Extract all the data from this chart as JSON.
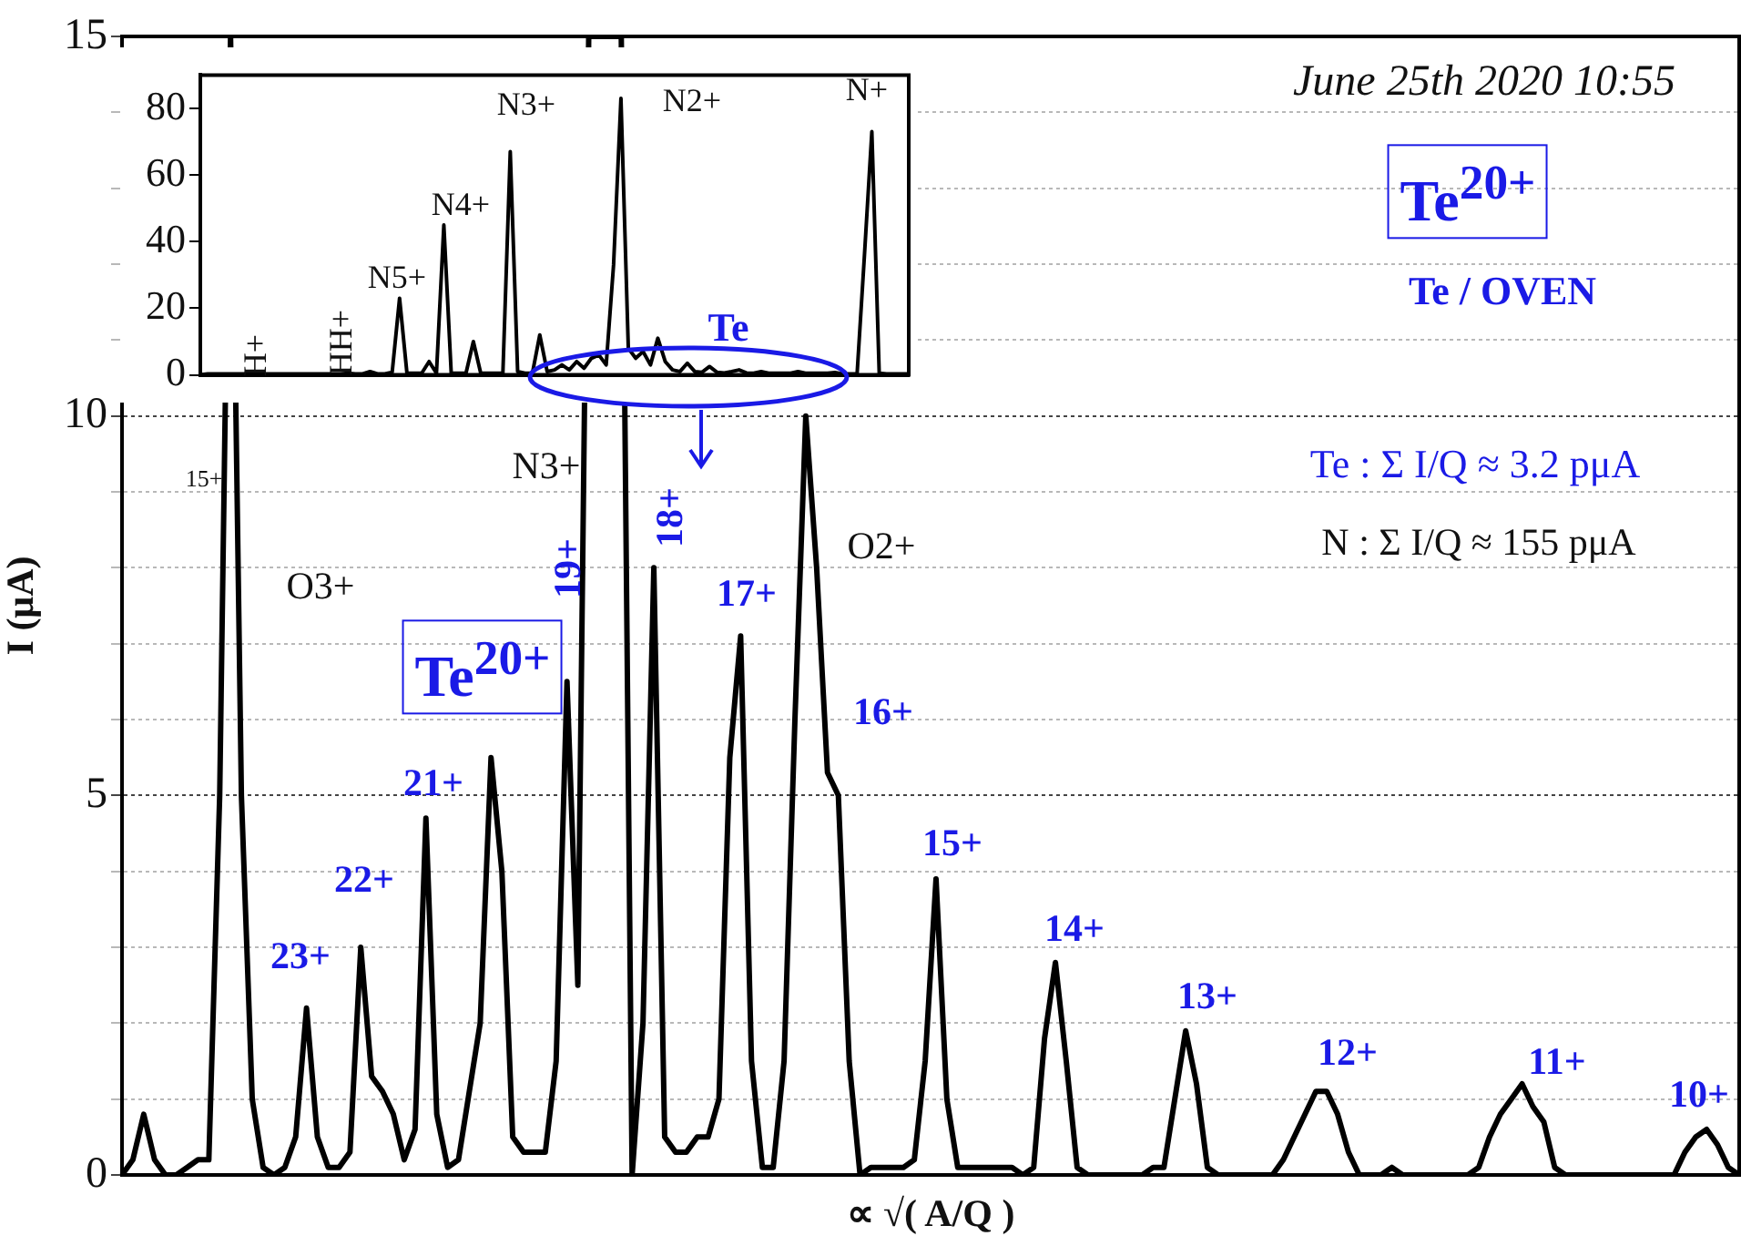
{
  "chart_data": [
    {
      "type": "line",
      "xlabel": "∝ √( A/Q )",
      "ylabel": "I (μA)",
      "tick_labels": "y",
      "grid": "y",
      "categories": [
        null,
        null,
        null,
        null,
        null,
        null,
        null,
        null,
        null,
        null,
        null,
        null,
        null,
        null,
        null,
        null,
        null,
        null,
        null,
        null,
        null,
        null,
        null,
        null,
        null,
        null,
        null,
        null,
        null,
        null,
        null,
        null,
        null,
        null,
        null,
        null,
        null,
        null,
        null,
        null,
        null,
        null,
        null,
        null,
        null,
        null,
        null,
        null,
        null,
        null,
        null,
        null,
        null,
        null,
        null,
        null,
        null,
        null,
        null,
        null,
        null,
        null,
        null,
        null,
        null,
        null,
        null,
        null,
        null,
        null,
        null,
        null,
        null,
        null,
        null,
        null,
        null,
        null,
        null,
        null,
        null,
        null,
        null,
        null,
        null,
        null,
        null,
        null,
        null,
        null,
        null,
        null,
        null,
        null,
        null,
        null,
        null,
        null,
        null,
        null,
        null,
        null,
        null,
        null,
        null,
        null,
        null,
        null,
        null,
        null,
        null,
        null,
        null,
        null,
        null,
        null,
        null,
        null,
        null,
        null,
        null,
        null,
        null,
        null,
        null,
        null,
        null,
        null,
        null,
        null,
        null,
        null,
        null,
        null,
        null,
        null,
        null,
        null,
        null,
        null,
        null,
        null,
        null,
        null,
        null,
        null,
        null,
        null,
        null,
        null
      ],
      "series": [
        {
          "color": "#000000",
          "values": [
            0,
            0.2,
            0.8,
            0.2,
            0,
            0,
            0.1,
            0.2,
            0.2,
            5,
            15,
            5,
            1,
            0.1,
            0,
            0.1,
            0.5,
            2.2,
            0.5,
            0.1,
            0.1,
            0.3,
            3,
            1.3,
            1.1,
            0.8,
            0.2,
            0.6,
            4.7,
            0.8,
            0.1,
            0.2,
            1.1,
            2,
            5.5,
            4,
            0.5,
            0.3,
            0.3,
            0.3,
            1.5,
            6.5,
            2.5,
            15,
            15,
            15,
            15,
            0,
            2,
            8,
            0.5,
            0.3,
            0.3,
            0.5,
            0.5,
            1,
            5.5,
            7.1,
            1.5,
            0.1,
            0.1,
            1.5,
            6,
            10,
            8,
            5.3,
            5,
            1.5,
            0,
            0.1,
            0.1,
            0.1,
            0.1,
            0.2,
            1.5,
            3.9,
            1,
            0.1,
            0.1,
            0.1,
            0.1,
            0.1,
            0.1,
            0,
            0.1,
            1.8,
            2.8,
            1.5,
            0.1,
            0,
            0,
            0,
            0,
            0,
            0,
            0.1,
            0.1,
            1,
            1.9,
            1.2,
            0.1,
            0,
            0,
            0,
            0,
            0,
            0,
            0.2,
            0.5,
            0.8,
            1.1,
            1.1,
            0.8,
            0.3,
            0,
            0,
            0,
            0.1,
            0,
            0,
            0,
            0,
            0,
            0,
            0,
            0.1,
            0.5,
            0.8,
            1,
            1.2,
            0.9,
            0.7,
            0.1,
            0,
            0,
            0,
            0,
            0,
            0,
            0,
            0,
            0,
            0,
            0,
            0.3,
            0.5,
            0.6,
            0.4,
            0.1,
            0
          ]
        }
      ],
      "ylim": [
        0,
        15
      ],
      "yticks": [
        0,
        {
          "value": 1,
          "label": null
        },
        {
          "value": 2,
          "label": null
        },
        {
          "value": 3,
          "label": null
        },
        {
          "value": 4,
          "label": null
        },
        5,
        {
          "value": 6,
          "label": null
        },
        {
          "value": 7,
          "label": null
        },
        {
          "value": 8,
          "label": null
        },
        {
          "value": 9,
          "label": null
        },
        10,
        {
          "value": 11,
          "label": null
        },
        {
          "value": 12,
          "label": null
        },
        {
          "value": 13,
          "label": null
        },
        {
          "value": 14,
          "label": null
        },
        15
      ],
      "annotations": [
        "June 25th 2020 10:55",
        "Te$^{20+}$",
        "Te / OVEN",
        "Te : Σ I/Q ≈ 3.2 pμA",
        "N : Σ I/Q ≈ 155 pμA",
        "Te$^{20+}$",
        "15+",
        "O3+",
        "N3+",
        "O2+",
        "23+",
        "22+",
        "21+",
        "19+",
        "18+",
        "17+",
        "16+",
        "15+",
        "14+",
        "13+",
        "12+",
        "11+",
        "10+"
      ]
    },
    {
      "type": "line",
      "tick_labels": "y",
      "categories": [
        null,
        null,
        null,
        null,
        null,
        null,
        null,
        null,
        null,
        null,
        null,
        null,
        null,
        null,
        null,
        null,
        null,
        null,
        null,
        null,
        null,
        null,
        null,
        null,
        null,
        null,
        null,
        null,
        null,
        null,
        null,
        null,
        null,
        null,
        null,
        null,
        null,
        null,
        null,
        null,
        null,
        null,
        null,
        null,
        null,
        null,
        null,
        null,
        null,
        null,
        null,
        null,
        null,
        null,
        null,
        null,
        null,
        null,
        null,
        null,
        null,
        null,
        null,
        null,
        null,
        null,
        null,
        null,
        null,
        null,
        null,
        null,
        null,
        null,
        null,
        null,
        null,
        null,
        null,
        null,
        null,
        null,
        null,
        null,
        null,
        null,
        null,
        null,
        null,
        null,
        null,
        null,
        null,
        null,
        null,
        null,
        null
      ],
      "series": [
        {
          "color": "#000000",
          "values": [
            0,
            0.3,
            0.3,
            0.3,
            0.3,
            0.3,
            0.3,
            1,
            0.3,
            0.3,
            0.3,
            0.3,
            0.3,
            0.3,
            0.3,
            0.3,
            0.3,
            0.3,
            0.3,
            0.3,
            0.5,
            0.3,
            0.3,
            1,
            0.3,
            0.3,
            0.8,
            23,
            0.5,
            0.5,
            0.5,
            4,
            0.5,
            45,
            0.5,
            0.5,
            0.5,
            10,
            0.5,
            0.5,
            0.5,
            0.5,
            67,
            1,
            0.5,
            0.5,
            12,
            1,
            1.5,
            3,
            1.5,
            4,
            2,
            5,
            6,
            3,
            33,
            83,
            8,
            5,
            7,
            3,
            11,
            4,
            1.5,
            1,
            3.5,
            1,
            0.8,
            2.5,
            0.8,
            0.6,
            1,
            1.5,
            0.6,
            0.5,
            1,
            0.5,
            0.5,
            0.5,
            0.5,
            1,
            0.5,
            0.5,
            0.5,
            0.5,
            0.7,
            0.3,
            0.3,
            0.3,
            36,
            73,
            0.5,
            0.3,
            0.3,
            0.3,
            0.3
          ]
        }
      ],
      "ylim": [
        0,
        90
      ],
      "yticks": [
        0,
        20,
        40,
        60,
        80
      ],
      "annotations": [
        "H+",
        "HH+",
        "N5+",
        "N4+",
        "N3+",
        "N2+",
        "N+",
        "Te"
      ]
    }
  ]
}
